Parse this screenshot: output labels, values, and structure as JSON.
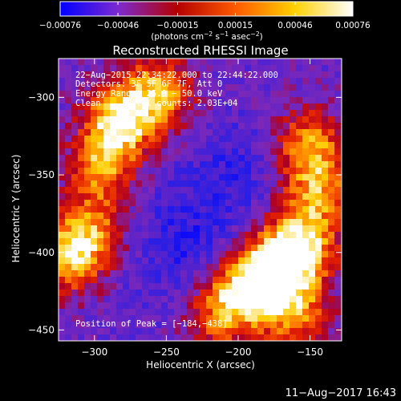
{
  "chart_data": {
    "type": "heatmap",
    "title": "Reconstructed RHESSI Image",
    "xlabel": "Heliocentric X (arcsec)",
    "ylabel": "Heliocentric Y (arcsec)",
    "xlim": [
      -325,
      -128
    ],
    "ylim": [
      -457,
      -275
    ],
    "xticks": [
      -300,
      -250,
      -200,
      -150
    ],
    "yticks": [
      -300,
      -350,
      -400,
      -450
    ],
    "xtick_labels": [
      "−300",
      "−250",
      "−200",
      "−150"
    ],
    "ytick_labels": [
      "−300",
      "−350",
      "−400",
      "−450"
    ],
    "colorbar": {
      "range": [
        -0.00076,
        0.00076
      ],
      "ticks": [
        -0.00076,
        -0.00046,
        -0.00015,
        0.00015,
        0.00046,
        0.00076
      ],
      "tick_labels": [
        "−0.00076",
        "−0.00046",
        "−0.00015",
        "0.00015",
        "0.00046",
        "0.00076"
      ],
      "unit_main": "(photons cm",
      "unit_sup1": "−2",
      "unit_mid": " s",
      "unit_sup2": "−1",
      "unit_end": " asec",
      "unit_sup3": "−2",
      "unit_close": ")",
      "colors": [
        "#0000ff",
        "#7d2ad0",
        "#b40000",
        "#ff5a00",
        "#ffd000",
        "#ffffff"
      ]
    },
    "annotations": [
      "22−Aug−2015 22:34:22.000 to 22:44:22.000",
      "Detectors: 3F 5F 6F 7F, Att 0",
      "Energy Range: 25.0 − 50.0 keV",
      "Clean     Total counts: 2.03E+04"
    ],
    "peak_label": "Position of Peak = [−184,−438]",
    "peak": [
      -184,
      -438
    ],
    "hot_regions": [
      {
        "x": -283,
        "y": -315,
        "amp": 1.0
      },
      {
        "x": -255,
        "y": -297,
        "amp": 0.85
      },
      {
        "x": -295,
        "y": -345,
        "amp": 0.7
      },
      {
        "x": -318,
        "y": -402,
        "amp": 0.9
      },
      {
        "x": -300,
        "y": -385,
        "amp": 0.55
      },
      {
        "x": -150,
        "y": -330,
        "amp": 0.75
      },
      {
        "x": -145,
        "y": -360,
        "amp": 0.65
      },
      {
        "x": -155,
        "y": -395,
        "amp": 0.9
      },
      {
        "x": -175,
        "y": -410,
        "amp": 1.0
      },
      {
        "x": -195,
        "y": -425,
        "amp": 0.85
      },
      {
        "x": -215,
        "y": -440,
        "amp": 0.6
      },
      {
        "x": -160,
        "y": -440,
        "amp": 0.7
      }
    ]
  },
  "footer": {
    "timestamp": "11−Aug−2017 16:43"
  }
}
